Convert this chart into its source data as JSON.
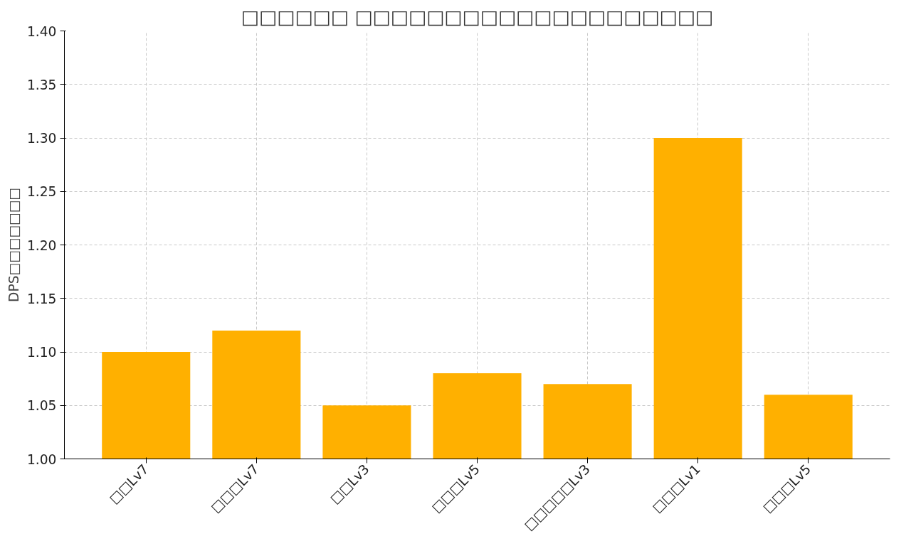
{
  "chart_data": {
    "type": "bar",
    "title": "□□□□□□ □□□□□□□□□□□□□□□□□□□□",
    "ylabel": "DPS□□□□□□□",
    "categories": [
      "□□Lv7",
      "□□□Lv7",
      "□□Lv3",
      "□□□Lv5",
      "□□□□□Lv3",
      "□□□Lv1",
      "□□□Lv5"
    ],
    "values": [
      1.1,
      1.12,
      1.05,
      1.08,
      1.07,
      1.3,
      1.06
    ],
    "color": "#ffb000",
    "ylim": [
      1.0,
      1.4
    ],
    "yticks": [
      {
        "value": 1.0,
        "label": "1.00"
      },
      {
        "value": 1.05,
        "label": "1.05"
      },
      {
        "value": 1.1,
        "label": "1.10"
      },
      {
        "value": 1.15,
        "label": "1.15"
      },
      {
        "value": 1.2,
        "label": "1.20"
      },
      {
        "value": 1.25,
        "label": "1.25"
      },
      {
        "value": 1.3,
        "label": "1.30"
      },
      {
        "value": 1.35,
        "label": "1.35"
      },
      {
        "value": 1.4,
        "label": "1.40"
      }
    ],
    "grid": true,
    "line_style": "dashed"
  }
}
